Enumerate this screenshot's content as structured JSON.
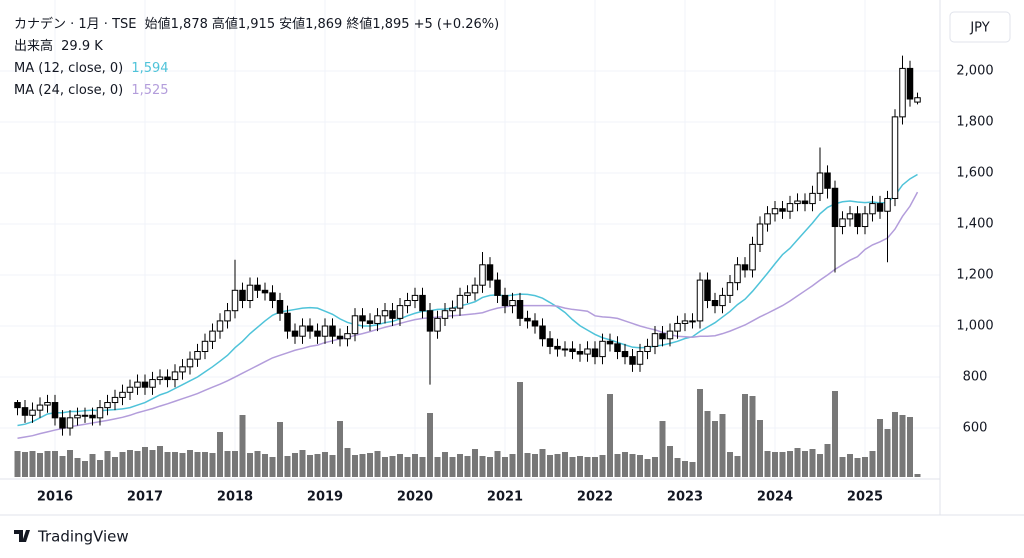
{
  "chart_data": {
    "type": "candlestick",
    "title": "カナデン · 1月 · TSE",
    "quote": [
      {
        "label": "始値",
        "value_label": "1,878"
      },
      {
        "label": "高値",
        "value_label": "1,915"
      },
      {
        "label": "安値",
        "value_label": "1,869"
      },
      {
        "label": "終値",
        "value_label": "1,895"
      }
    ],
    "change_label": "+5 (+0.26%)",
    "currency": "JPY",
    "categories": [
      null,
      null,
      null,
      null,
      null,
      "2016",
      null,
      null,
      null,
      null,
      null,
      null,
      null,
      null,
      null,
      null,
      null,
      "2017",
      null,
      null,
      null,
      null,
      null,
      null,
      null,
      null,
      null,
      null,
      null,
      "2018",
      null,
      null,
      null,
      null,
      null,
      null,
      null,
      null,
      null,
      null,
      null,
      "2019",
      null,
      null,
      null,
      null,
      null,
      null,
      null,
      null,
      null,
      null,
      null,
      "2020",
      null,
      null,
      null,
      null,
      null,
      null,
      null,
      null,
      null,
      null,
      null,
      "2021",
      null,
      null,
      null,
      null,
      null,
      null,
      null,
      null,
      null,
      null,
      null,
      "2022",
      null,
      null,
      null,
      null,
      null,
      null,
      null,
      null,
      null,
      null,
      null,
      "2023",
      null,
      null,
      null,
      null,
      null,
      null,
      null,
      null,
      null,
      null,
      null,
      "2024",
      null,
      null,
      null,
      null,
      null,
      null,
      null,
      null,
      null,
      null,
      null,
      "2025",
      null,
      null,
      null,
      null,
      null,
      null,
      null
    ],
    "open": [
      700,
      680,
      650,
      670,
      690,
      700,
      640,
      600,
      640,
      650,
      650,
      640,
      680,
      700,
      720,
      740,
      760,
      780,
      760,
      790,
      800,
      790,
      820,
      840,
      870,
      900,
      940,
      980,
      1020,
      1060,
      1140,
      1100,
      1160,
      1140,
      1130,
      1100,
      1050,
      980,
      960,
      1000,
      980,
      960,
      1000,
      960,
      950,
      970,
      1040,
      1020,
      1010,
      1040,
      1060,
      1030,
      1080,
      1100,
      1120,
      1060,
      980,
      1030,
      1060,
      1070,
      1120,
      1130,
      1160,
      1240,
      1180,
      1120,
      1080,
      1100,
      1030,
      1020,
      1000,
      950,
      920,
      910,
      910,
      900,
      890,
      910,
      880,
      940,
      930,
      900,
      880,
      850,
      900,
      920,
      970,
      950,
      980,
      1010,
      1020,
      1020,
      1180,
      1100,
      1080,
      1120,
      1170,
      1240,
      1220,
      1320,
      1400,
      1440,
      1460,
      1450,
      1480,
      1490,
      1480,
      1520,
      1600,
      1540,
      1390,
      1420,
      1440,
      1390,
      1440,
      1480,
      1450,
      1500,
      1820,
      2010,
      1878
    ],
    "high": [
      710,
      710,
      700,
      720,
      730,
      730,
      670,
      670,
      680,
      680,
      680,
      710,
      730,
      750,
      770,
      790,
      810,
      810,
      820,
      830,
      830,
      850,
      870,
      900,
      930,
      970,
      1010,
      1050,
      1090,
      1260,
      1170,
      1190,
      1190,
      1170,
      1160,
      1130,
      1080,
      1010,
      1030,
      1030,
      1010,
      1030,
      1030,
      990,
      1000,
      1070,
      1070,
      1050,
      1070,
      1090,
      1090,
      1110,
      1130,
      1150,
      1150,
      1090,
      1060,
      1090,
      1100,
      1150,
      1160,
      1190,
      1290,
      1270,
      1210,
      1150,
      1130,
      1130,
      1060,
      1050,
      1030,
      980,
      950,
      940,
      940,
      930,
      940,
      940,
      970,
      970,
      960,
      930,
      910,
      930,
      950,
      1000,
      1000,
      1010,
      1040,
      1050,
      1050,
      1210,
      1210,
      1130,
      1150,
      1200,
      1270,
      1270,
      1350,
      1430,
      1470,
      1490,
      1490,
      1510,
      1520,
      1520,
      1550,
      1700,
      1630,
      1570,
      1450,
      1470,
      1470,
      1470,
      1510,
      1510,
      1530,
      1850,
      2060,
      2040,
      1915
    ],
    "low": [
      650,
      620,
      620,
      640,
      660,
      610,
      570,
      570,
      610,
      620,
      610,
      610,
      650,
      670,
      690,
      710,
      730,
      730,
      730,
      770,
      760,
      760,
      790,
      810,
      840,
      870,
      910,
      950,
      990,
      1030,
      1070,
      1070,
      1110,
      1100,
      1070,
      1020,
      950,
      930,
      930,
      950,
      930,
      930,
      930,
      920,
      920,
      940,
      990,
      980,
      980,
      1010,
      1000,
      1000,
      1050,
      1070,
      1030,
      770,
      950,
      1000,
      1030,
      1040,
      1090,
      1100,
      1130,
      1150,
      1090,
      1050,
      1050,
      1000,
      990,
      970,
      920,
      890,
      880,
      880,
      870,
      860,
      860,
      850,
      850,
      900,
      870,
      850,
      820,
      820,
      870,
      890,
      920,
      920,
      950,
      980,
      990,
      990,
      1070,
      1050,
      1050,
      1090,
      1140,
      1190,
      1190,
      1290,
      1370,
      1410,
      1420,
      1420,
      1450,
      1450,
      1450,
      1490,
      1500,
      1210,
      1360,
      1390,
      1360,
      1360,
      1410,
      1420,
      1250,
      1470,
      1790,
      1860,
      1869
    ],
    "close": [
      680,
      650,
      670,
      690,
      700,
      640,
      600,
      640,
      650,
      650,
      640,
      680,
      700,
      720,
      740,
      760,
      780,
      760,
      790,
      800,
      790,
      820,
      840,
      870,
      900,
      940,
      980,
      1020,
      1060,
      1140,
      1100,
      1160,
      1140,
      1130,
      1100,
      1050,
      980,
      960,
      1000,
      980,
      960,
      1000,
      960,
      950,
      970,
      1040,
      1020,
      1010,
      1040,
      1060,
      1030,
      1080,
      1100,
      1120,
      1060,
      980,
      1030,
      1060,
      1070,
      1120,
      1130,
      1160,
      1240,
      1180,
      1120,
      1080,
      1100,
      1030,
      1020,
      1000,
      950,
      920,
      910,
      910,
      900,
      890,
      910,
      880,
      940,
      930,
      900,
      880,
      850,
      900,
      920,
      970,
      950,
      980,
      1010,
      1020,
      1020,
      1180,
      1100,
      1080,
      1120,
      1170,
      1240,
      1220,
      1320,
      1400,
      1440,
      1460,
      1450,
      1480,
      1490,
      1480,
      1520,
      1600,
      1540,
      1390,
      1420,
      1440,
      1390,
      1440,
      1480,
      1450,
      1500,
      1820,
      2010,
      1890,
      1895
    ],
    "up_color": "#ffffff",
    "down_color": "#000000",
    "border_color": "#000000",
    "volume": {
      "name": "出来高",
      "last_label": "29.9 K",
      "color": "#787878",
      "values": [
        260,
        250,
        260,
        240,
        260,
        260,
        210,
        270,
        190,
        160,
        230,
        170,
        260,
        200,
        250,
        270,
        260,
        300,
        270,
        310,
        250,
        250,
        240,
        270,
        250,
        250,
        240,
        450,
        260,
        260,
        620,
        240,
        260,
        230,
        200,
        550,
        210,
        240,
        270,
        220,
        230,
        250,
        220,
        560,
        290,
        220,
        230,
        240,
        260,
        200,
        210,
        230,
        200,
        230,
        200,
        640,
        200,
        250,
        200,
        230,
        210,
        280,
        210,
        200,
        260,
        200,
        230,
        950,
        240,
        230,
        280,
        220,
        230,
        250,
        200,
        210,
        200,
        200,
        220,
        830,
        230,
        250,
        230,
        220,
        180,
        200,
        560,
        310,
        190,
        160,
        150,
        880,
        660,
        560,
        630,
        250,
        210,
        830,
        810,
        570,
        260,
        250,
        250,
        260,
        290,
        260,
        280,
        230,
        330,
        860,
        200,
        230,
        190,
        200,
        260,
        580,
        480,
        650,
        620,
        600,
        29.9
      ]
    },
    "ma": [
      {
        "name": "MA (12, close, 0)",
        "last_label": "1,594",
        "color": "#4fc3d9",
        "values": [
          610,
          615,
          625,
          640,
          655,
          660,
          660,
          665,
          665,
          668,
          670,
          668,
          670,
          672,
          675,
          680,
          690,
          700,
          715,
          730,
          740,
          755,
          770,
          785,
          800,
          820,
          840,
          862,
          885,
          915,
          940,
          970,
          995,
          1020,
          1042,
          1055,
          1060,
          1065,
          1070,
          1072,
          1070,
          1058,
          1046,
          1028,
          1014,
          1006,
          1000,
          1000,
          1005,
          1013,
          1018,
          1028,
          1040,
          1050,
          1058,
          1060,
          1065,
          1066,
          1070,
          1079,
          1086,
          1095,
          1112,
          1120,
          1122,
          1118,
          1121,
          1125,
          1124,
          1119,
          1109,
          1092,
          1074,
          1053,
          1025,
          1001,
          984,
          967,
          954,
          946,
          936,
          926,
          917,
          915,
          916,
          921,
          925,
          932,
          940,
          951,
          958,
          979,
          996,
          1013,
          1035,
          1057,
          1084,
          1105,
          1136,
          1171,
          1207,
          1244,
          1280,
          1305,
          1338,
          1371,
          1404,
          1440,
          1465,
          1479,
          1487,
          1490,
          1486,
          1484,
          1486,
          1483,
          1484,
          1512,
          1553,
          1577,
          1594
        ]
      },
      {
        "name": "MA (24, close, 0)",
        "last_label": "1,525",
        "color": "#b39ddb",
        "values": [
          560,
          565,
          570,
          578,
          585,
          592,
          598,
          605,
          610,
          615,
          620,
          625,
          630,
          636,
          642,
          650,
          660,
          668,
          676,
          686,
          695,
          705,
          715,
          725,
          735,
          748,
          760,
          772,
          785,
          800,
          815,
          830,
          845,
          860,
          875,
          885,
          895,
          905,
          912,
          920,
          925,
          935,
          942,
          950,
          955,
          963,
          970,
          978,
          987,
          995,
          1002,
          1010,
          1018,
          1025,
          1030,
          1032,
          1035,
          1038,
          1040,
          1042,
          1045,
          1048,
          1052,
          1062,
          1070,
          1075,
          1080,
          1080,
          1080,
          1080,
          1080,
          1080,
          1078,
          1070,
          1065,
          1062,
          1058,
          1040,
          1036,
          1034,
          1030,
          1020,
          1010,
          1000,
          992,
          985,
          975,
          966,
          960,
          958,
          956,
          960,
          960,
          962,
          970,
          980,
          992,
          1004,
          1020,
          1036,
          1050,
          1065,
          1080,
          1098,
          1118,
          1138,
          1158,
          1180,
          1200,
          1222,
          1240,
          1258,
          1272,
          1300,
          1318,
          1330,
          1345,
          1380,
          1430,
          1470,
          1525
        ]
      }
    ],
    "ylim": [
      408,
      2239
    ],
    "yticks": [
      {
        "value": 600,
        "label": "600"
      },
      {
        "value": 800,
        "label": "800"
      },
      {
        "value": 1000,
        "label": "1,000"
      },
      {
        "value": 1200,
        "label": "1,200"
      },
      {
        "value": 1400,
        "label": "1,400"
      },
      {
        "value": 1600,
        "label": "1,600"
      },
      {
        "value": 1800,
        "label": "1,800"
      },
      {
        "value": 2000,
        "label": "2,000"
      }
    ],
    "grid": true
  },
  "branding": "TradingView"
}
